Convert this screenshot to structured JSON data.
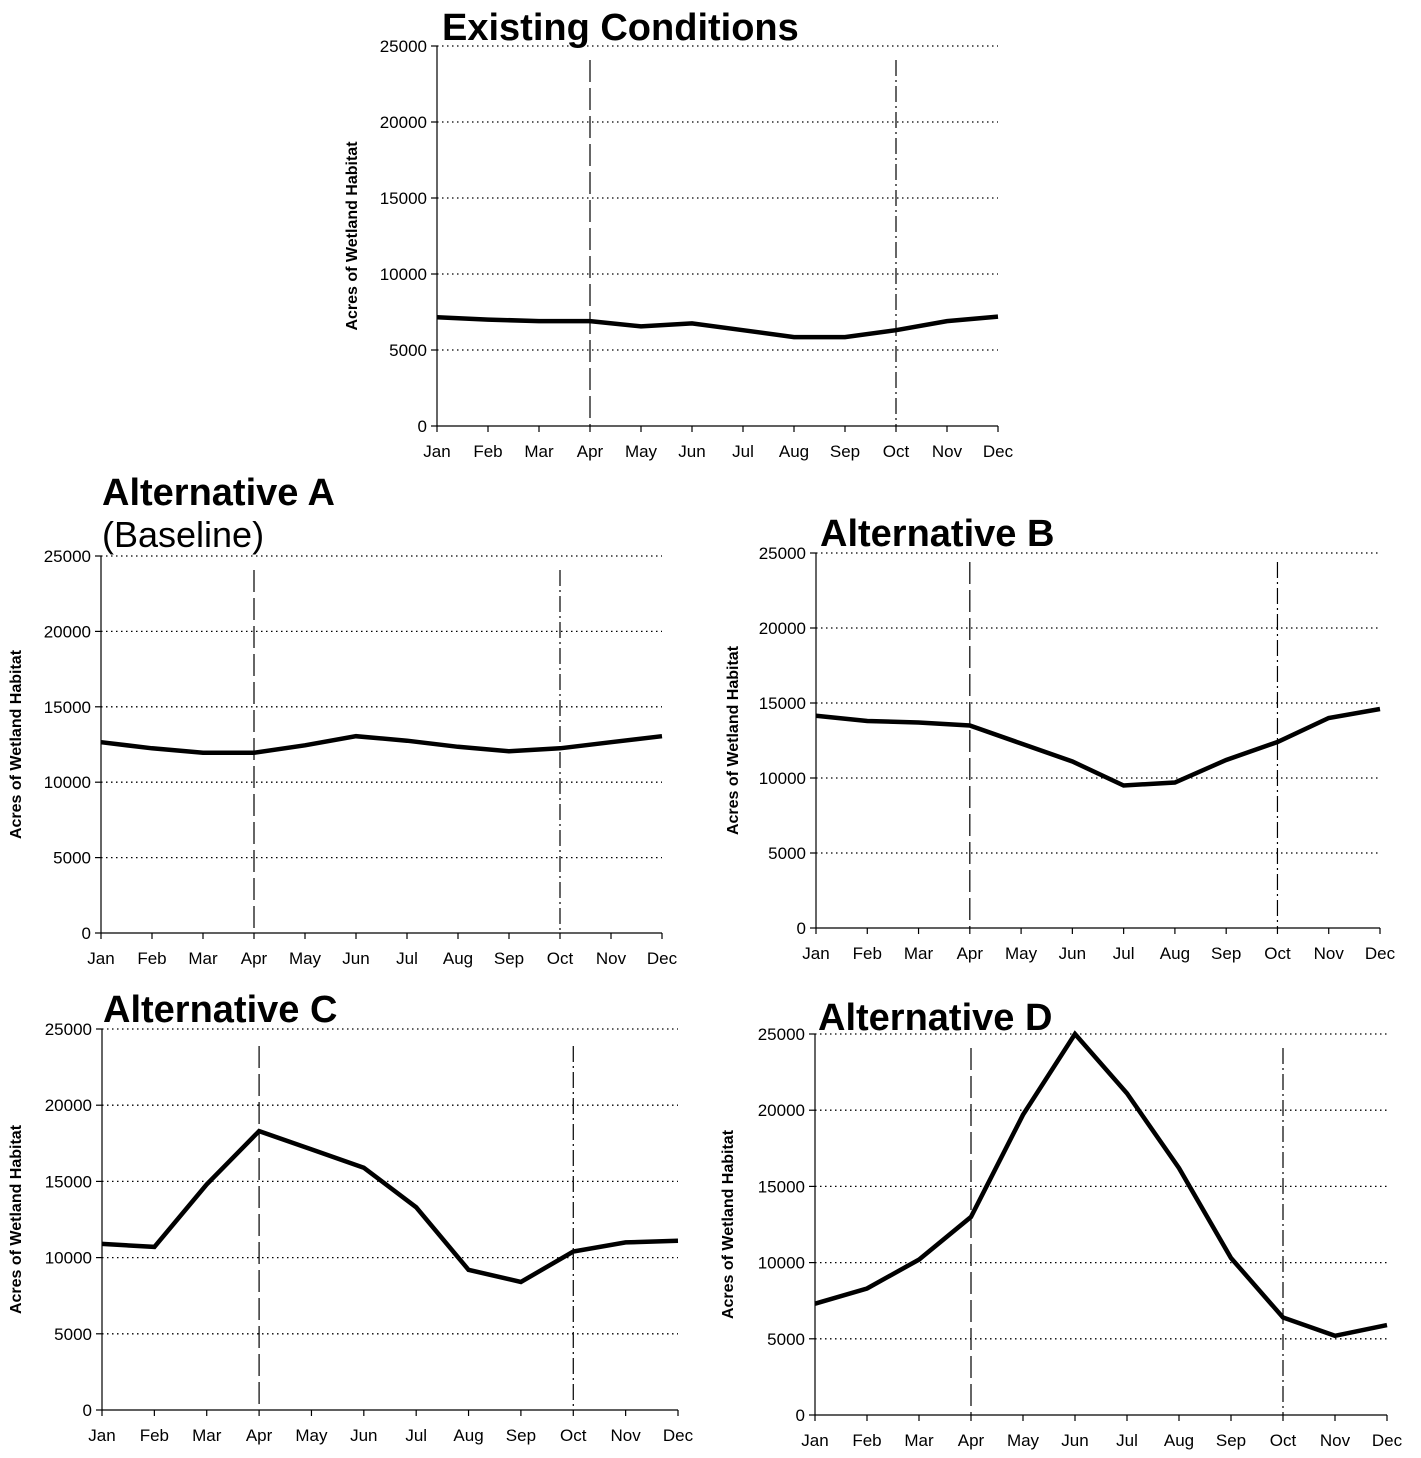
{
  "chart_data": [
    {
      "id": "existing",
      "type": "line",
      "title": "Existing Conditions",
      "subtitle": "",
      "ylabel": "Acres of Wetland Habitat",
      "xlabel": "",
      "categories": [
        "Jan",
        "Feb",
        "Mar",
        "Apr",
        "May",
        "Jun",
        "Jul",
        "Aug",
        "Sep",
        "Oct",
        "Nov",
        "Dec"
      ],
      "values": [
        7150,
        7000,
        6900,
        6900,
        6550,
        6750,
        6300,
        5850,
        5850,
        6300,
        6900,
        7200
      ],
      "yticks": [
        "0",
        "5000",
        "10000",
        "15000",
        "20000",
        "25000"
      ],
      "ylim": [
        0,
        25000
      ],
      "grid": "horizontal dotted",
      "reference_lines": [
        {
          "month": "Apr",
          "style": "dashed"
        },
        {
          "month": "Oct",
          "style": "dash-dot"
        }
      ]
    },
    {
      "id": "alt-a",
      "type": "line",
      "title": "Alternative A",
      "subtitle": "(Baseline)",
      "ylabel": "Acres of Wetland Habitat",
      "xlabel": "",
      "categories": [
        "Jan",
        "Feb",
        "Mar",
        "Apr",
        "May",
        "Jun",
        "Jul",
        "Aug",
        "Sep",
        "Oct",
        "Nov",
        "Dec"
      ],
      "values": [
        12650,
        12250,
        11950,
        11950,
        12450,
        13050,
        12750,
        12350,
        12050,
        12250,
        12650,
        13050
      ],
      "yticks": [
        "0",
        "5000",
        "10000",
        "15000",
        "20000",
        "25000"
      ],
      "ylim": [
        0,
        25000
      ],
      "grid": "horizontal dotted",
      "reference_lines": [
        {
          "month": "Apr",
          "style": "dashed"
        },
        {
          "month": "Oct",
          "style": "dash-dot"
        }
      ]
    },
    {
      "id": "alt-b",
      "type": "line",
      "title": "Alternative B",
      "subtitle": "",
      "ylabel": "Acres of Wetland Habitat",
      "xlabel": "",
      "categories": [
        "Jan",
        "Feb",
        "Mar",
        "Apr",
        "May",
        "Jun",
        "Jul",
        "Aug",
        "Sep",
        "Oct",
        "Nov",
        "Dec"
      ],
      "values": [
        14150,
        13800,
        13700,
        13500,
        12300,
        11100,
        9500,
        9700,
        11200,
        12400,
        14000,
        14600
      ],
      "yticks": [
        "0",
        "5000",
        "10000",
        "15000",
        "20000",
        "25000"
      ],
      "ylim": [
        0,
        25000
      ],
      "grid": "horizontal dotted",
      "reference_lines": [
        {
          "month": "Apr",
          "style": "dashed"
        },
        {
          "month": "Oct",
          "style": "dash-dot"
        }
      ]
    },
    {
      "id": "alt-c",
      "type": "line",
      "title": "Alternative C",
      "subtitle": "",
      "ylabel": "Acres of Wetland Habitat",
      "xlabel": "",
      "categories": [
        "Jan",
        "Feb",
        "Mar",
        "Apr",
        "May",
        "Jun",
        "Jul",
        "Aug",
        "Sep",
        "Oct",
        "Nov",
        "Dec"
      ],
      "values": [
        10900,
        10700,
        14800,
        18300,
        17100,
        15900,
        13300,
        9200,
        8400,
        10400,
        11000,
        11100
      ],
      "yticks": [
        "0",
        "5000",
        "10000",
        "15000",
        "20000",
        "25000"
      ],
      "ylim": [
        0,
        25000
      ],
      "grid": "horizontal dotted",
      "reference_lines": [
        {
          "month": "Apr",
          "style": "dashed"
        },
        {
          "month": "Oct",
          "style": "dash-dot"
        }
      ]
    },
    {
      "id": "alt-d",
      "type": "line",
      "title": "Alternative D",
      "subtitle": "",
      "ylabel": "Acres of Wetland Habitat",
      "xlabel": "",
      "categories": [
        "Jan",
        "Feb",
        "Mar",
        "Apr",
        "May",
        "Jun",
        "Jul",
        "Aug",
        "Sep",
        "Oct",
        "Nov",
        "Dec"
      ],
      "values": [
        7300,
        8300,
        10200,
        13000,
        19700,
        25000,
        21100,
        16200,
        10300,
        6400,
        5200,
        5900
      ],
      "yticks": [
        "0",
        "5000",
        "10000",
        "15000",
        "20000",
        "25000"
      ],
      "ylim": [
        0,
        25000
      ],
      "grid": "horizontal dotted",
      "reference_lines": [
        {
          "month": "Apr",
          "style": "dashed"
        },
        {
          "month": "Oct",
          "style": "dash-dot"
        }
      ]
    }
  ]
}
